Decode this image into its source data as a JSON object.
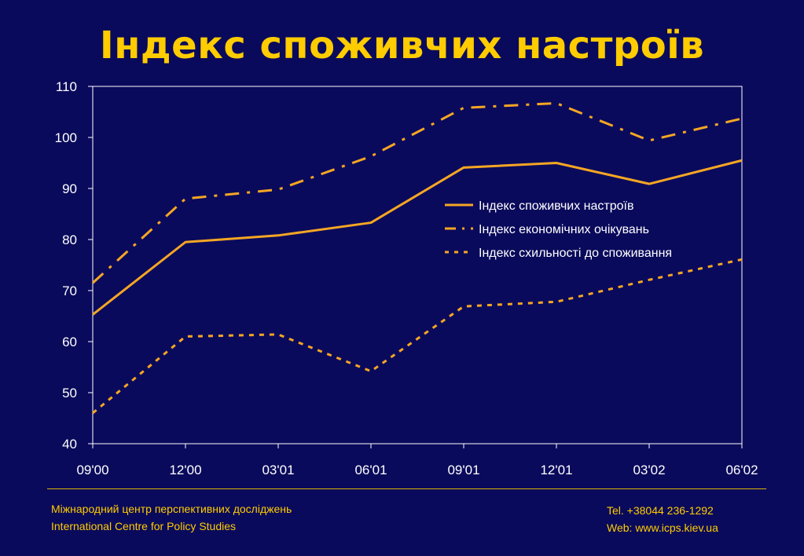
{
  "colors": {
    "background": "#0a0a5c",
    "accent": "#ffcc00",
    "series": "#f5a623",
    "axis": "#ffffff"
  },
  "chart_data": {
    "type": "line",
    "title": "Індекс споживчих настроїв",
    "xlabel": "",
    "ylabel": "",
    "categories": [
      "09'00",
      "12'00",
      "03'01",
      "06'01",
      "09'01",
      "12'01",
      "03'02",
      "06'02"
    ],
    "ylim": [
      40,
      110
    ],
    "yticks": [
      40,
      50,
      60,
      70,
      80,
      90,
      100,
      110
    ],
    "grid": false,
    "legend": "right",
    "series": [
      {
        "name": "Індекс споживчих настроїв",
        "style": "solid",
        "values": [
          65.3,
          79.5,
          80.8,
          83.3,
          94.1,
          95.0,
          90.9,
          95.5
        ]
      },
      {
        "name": "Індекс економічних очікувань",
        "style": "dash-dot",
        "values": [
          71.5,
          88.0,
          89.8,
          96.3,
          105.8,
          106.7,
          99.4,
          103.7
        ]
      },
      {
        "name": "Індекс схильності до споживання",
        "style": "dotted",
        "values": [
          46.0,
          61.0,
          61.4,
          54.2,
          66.9,
          67.8,
          72.1,
          76.1
        ]
      }
    ]
  },
  "footer": {
    "org_ua": "Міжнародний центр перспективних досліджень",
    "org_en": "International Centre for Policy Studies",
    "tel": "Tel. +38044 236-1292",
    "web": "Web: www.icps.kiev.ua"
  }
}
